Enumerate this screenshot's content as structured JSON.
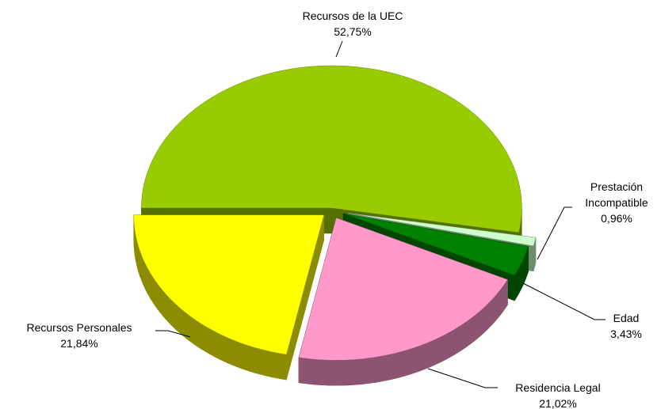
{
  "chart_data": {
    "type": "pie",
    "categories": [
      "Recursos de la UEC",
      "Prestación Incompatible",
      "Edad",
      "Residencia Legal",
      "Recursos Personales"
    ],
    "values": [
      52.75,
      0.96,
      3.43,
      21.02,
      21.84
    ],
    "value_labels": [
      "52,75%",
      "0,96%",
      "3,43%",
      "21,02%",
      "21,84%"
    ],
    "colors": [
      "#99cc00",
      "#ccffcc",
      "#008000",
      "#ff99cc",
      "#ffff00"
    ]
  }
}
